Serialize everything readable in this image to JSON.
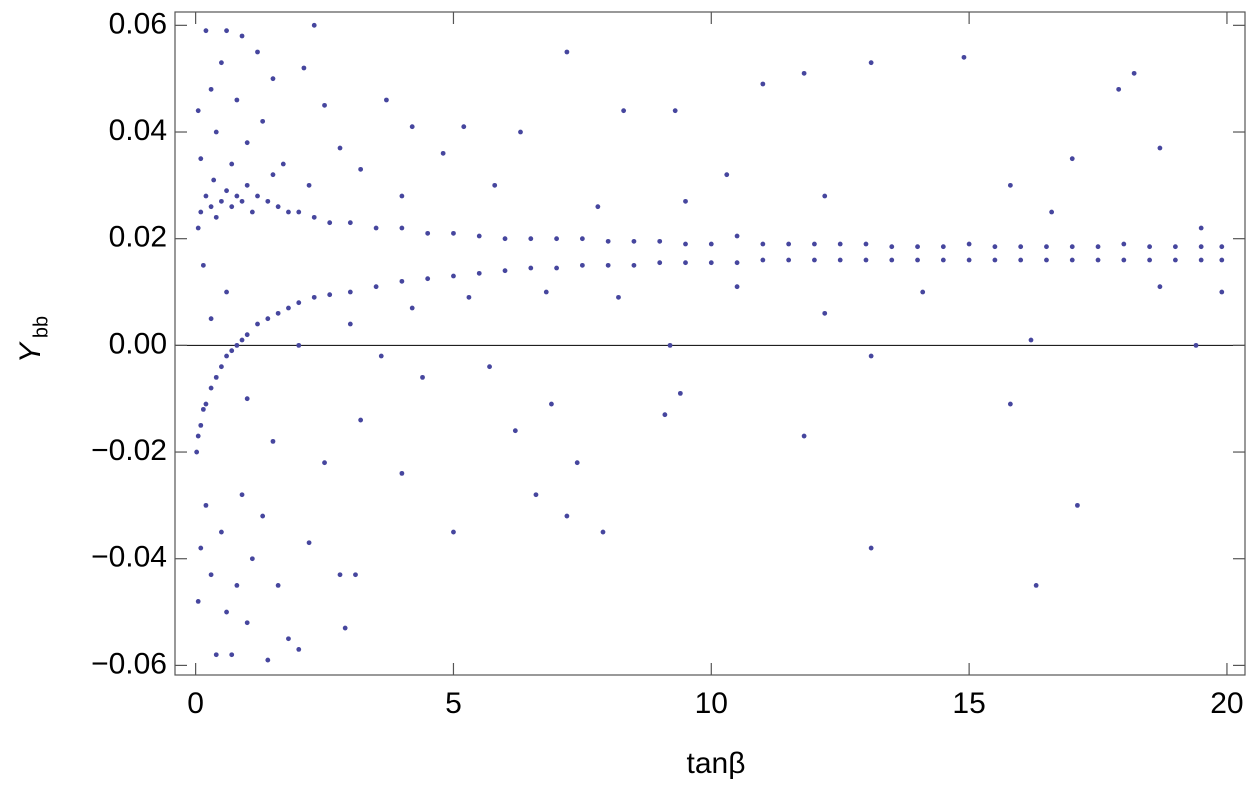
{
  "chart_data": {
    "type": "scatter",
    "x_label": "tanβ",
    "y_label": {
      "main": "Y",
      "sub": "bb"
    },
    "color": "#46469e",
    "xlim": [
      -0.4,
      20.35
    ],
    "ylim": [
      -0.0618,
      0.0625
    ],
    "xticks": [
      0,
      5,
      10,
      15,
      20
    ],
    "yticks": [
      {
        "value": -0.06,
        "label": "−0.06"
      },
      {
        "value": -0.04,
        "label": "−0.04"
      },
      {
        "value": -0.02,
        "label": "−0.02"
      },
      {
        "value": 0,
        "label": "0.00"
      },
      {
        "value": 0.02,
        "label": "0.02"
      },
      {
        "value": 0.04,
        "label": "0.04"
      },
      {
        "value": 0.06,
        "label": "0.06"
      }
    ],
    "zero_line": true,
    "x": [
      0.05,
      0.1,
      0.15,
      0.2,
      0.3,
      0.35,
      0.4,
      0.5,
      0.6,
      0.7,
      0.8,
      0.9,
      1.0,
      1.1,
      1.2,
      1.4,
      1.6,
      1.8,
      2.0,
      2.3,
      2.6,
      3.0,
      3.5,
      4.0,
      4.5,
      5.0,
      5.5,
      6.0,
      6.5,
      7.0,
      7.5,
      8.0,
      8.5,
      9.0,
      9.5,
      10.0,
      10.5,
      11.0,
      11.5,
      12.0,
      12.5,
      13.0,
      13.5,
      14.0,
      14.5,
      15.0,
      15.5,
      16.0,
      16.5,
      17.0,
      17.5,
      18.0,
      18.5,
      19.0,
      19.5,
      19.9,
      0.2,
      0.3,
      0.5,
      0.6,
      0.8,
      0.9,
      1.0,
      1.2,
      1.3,
      1.5,
      1.7,
      2.1,
      2.3,
      2.5,
      2.8,
      3.2,
      3.7,
      4.2,
      4.8,
      5.2,
      5.8,
      6.3,
      7.2,
      7.8,
      8.3,
      9.3,
      10.3,
      11.0,
      11.8,
      13.1,
      14.9,
      15.8,
      17.0,
      17.9,
      18.2,
      18.7,
      19.5,
      0.05,
      0.1,
      0.4,
      0.7,
      1.5,
      2.2,
      4.0,
      9.5,
      12.2,
      16.6,
      0.02,
      0.05,
      0.1,
      0.15,
      0.2,
      0.3,
      0.4,
      0.5,
      0.6,
      0.7,
      0.8,
      0.9,
      1.0,
      1.2,
      1.4,
      1.6,
      1.8,
      2.0,
      2.3,
      2.6,
      3.0,
      3.5,
      4.0,
      4.5,
      5.0,
      5.5,
      6.0,
      6.5,
      7.0,
      7.5,
      8.0,
      8.5,
      9.0,
      9.5,
      10.0,
      10.5,
      11.0,
      11.5,
      12.0,
      12.5,
      13.0,
      13.5,
      14.0,
      14.5,
      15.0,
      15.5,
      16.0,
      16.5,
      17.0,
      17.5,
      18.0,
      18.5,
      19.0,
      19.5,
      19.9,
      0.05,
      0.1,
      0.2,
      0.3,
      0.4,
      0.5,
      0.6,
      0.7,
      0.8,
      0.9,
      1.0,
      1.1,
      1.3,
      1.4,
      1.6,
      1.8,
      2.0,
      2.2,
      2.5,
      2.8,
      2.9,
      3.1,
      3.2,
      3.6,
      4.0,
      4.4,
      5.0,
      5.7,
      6.2,
      6.6,
      6.9,
      7.2,
      7.4,
      7.9,
      9.1,
      9.4,
      11.8,
      13.1,
      13.1,
      15.8,
      16.3,
      17.1,
      16.2,
      19.4,
      9.2,
      0.3,
      0.6,
      1.0,
      1.5,
      2.0,
      3.0,
      4.2,
      5.3,
      6.8,
      8.2,
      10.5,
      12.2,
      14.1,
      18.7,
      19.9
    ],
    "values": [
      0.022,
      0.025,
      0.015,
      0.028,
      0.026,
      0.031,
      0.024,
      0.027,
      0.029,
      0.026,
      0.028,
      0.027,
      0.03,
      0.025,
      0.028,
      0.027,
      0.026,
      0.025,
      0.025,
      0.024,
      0.023,
      0.023,
      0.022,
      0.022,
      0.021,
      0.021,
      0.0205,
      0.02,
      0.02,
      0.02,
      0.02,
      0.0195,
      0.0195,
      0.0195,
      0.019,
      0.019,
      0.0205,
      0.019,
      0.019,
      0.019,
      0.019,
      0.019,
      0.0185,
      0.0185,
      0.0185,
      0.019,
      0.0185,
      0.0185,
      0.0185,
      0.0185,
      0.0185,
      0.019,
      0.0185,
      0.0185,
      0.0185,
      0.0185,
      0.059,
      0.048,
      0.053,
      0.059,
      0.046,
      0.058,
      0.038,
      0.055,
      0.042,
      0.05,
      0.034,
      0.052,
      0.06,
      0.045,
      0.037,
      0.033,
      0.046,
      0.041,
      0.036,
      0.041,
      0.03,
      0.04,
      0.055,
      0.026,
      0.044,
      0.044,
      0.032,
      0.049,
      0.051,
      0.053,
      0.054,
      0.03,
      0.035,
      0.048,
      0.051,
      0.037,
      0.022,
      0.044,
      0.035,
      0.04,
      0.034,
      0.032,
      0.03,
      0.028,
      0.027,
      0.028,
      0.025,
      -0.02,
      -0.017,
      -0.015,
      -0.012,
      -0.011,
      -0.008,
      -0.006,
      -0.004,
      -0.002,
      -0.001,
      0.0,
      0.001,
      0.002,
      0.004,
      0.005,
      0.006,
      0.007,
      0.008,
      0.009,
      0.0095,
      0.01,
      0.011,
      0.012,
      0.0125,
      0.013,
      0.0135,
      0.014,
      0.0145,
      0.0145,
      0.015,
      0.015,
      0.015,
      0.0155,
      0.0155,
      0.0155,
      0.0155,
      0.016,
      0.016,
      0.016,
      0.016,
      0.016,
      0.016,
      0.016,
      0.016,
      0.016,
      0.016,
      0.016,
      0.016,
      0.016,
      0.016,
      0.016,
      0.016,
      0.016,
      0.016,
      0.016,
      -0.048,
      -0.038,
      -0.03,
      -0.043,
      -0.058,
      -0.035,
      -0.05,
      -0.058,
      -0.045,
      -0.028,
      -0.052,
      -0.04,
      -0.032,
      -0.059,
      -0.045,
      -0.055,
      -0.057,
      -0.037,
      -0.022,
      -0.043,
      -0.053,
      -0.043,
      -0.014,
      -0.002,
      -0.024,
      -0.006,
      -0.035,
      -0.004,
      -0.016,
      -0.028,
      -0.011,
      -0.032,
      -0.022,
      -0.035,
      -0.013,
      -0.009,
      -0.017,
      -0.038,
      -0.002,
      -0.011,
      -0.045,
      -0.03,
      0.001,
      0.0,
      0.0,
      0.005,
      0.01,
      -0.01,
      -0.018,
      0.0,
      0.004,
      0.007,
      0.009,
      0.01,
      0.009,
      0.011,
      0.006,
      0.01,
      0.011,
      0.01
    ]
  }
}
